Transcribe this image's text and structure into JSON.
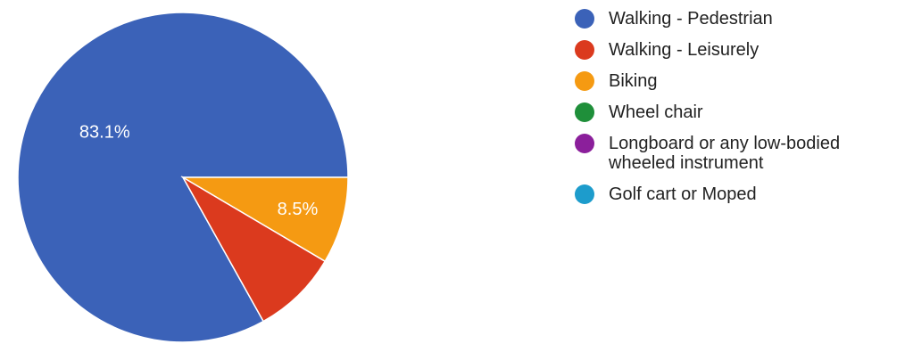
{
  "chart_data": {
    "type": "pie",
    "legend_position": "right",
    "slices": [
      {
        "label": "Walking - Pedestrian",
        "value": 83.1,
        "value_label": "83.1%",
        "color": "#3b62b8"
      },
      {
        "label": "Walking - Leisurely",
        "value": 8.4,
        "value_label": "",
        "color": "#db3a1e"
      },
      {
        "label": "Biking",
        "value": 8.5,
        "value_label": "8.5%",
        "color": "#f59a12"
      },
      {
        "label": "Wheel chair",
        "value": 0,
        "value_label": "",
        "color": "#1f8f3a"
      },
      {
        "label": "Longboard or any low-bodied wheeled instrument",
        "value": 0,
        "value_label": "",
        "color": "#8b1f9b"
      },
      {
        "label": "Golf cart or Moped",
        "value": 0,
        "value_label": "",
        "color": "#1d9ccc"
      }
    ]
  }
}
